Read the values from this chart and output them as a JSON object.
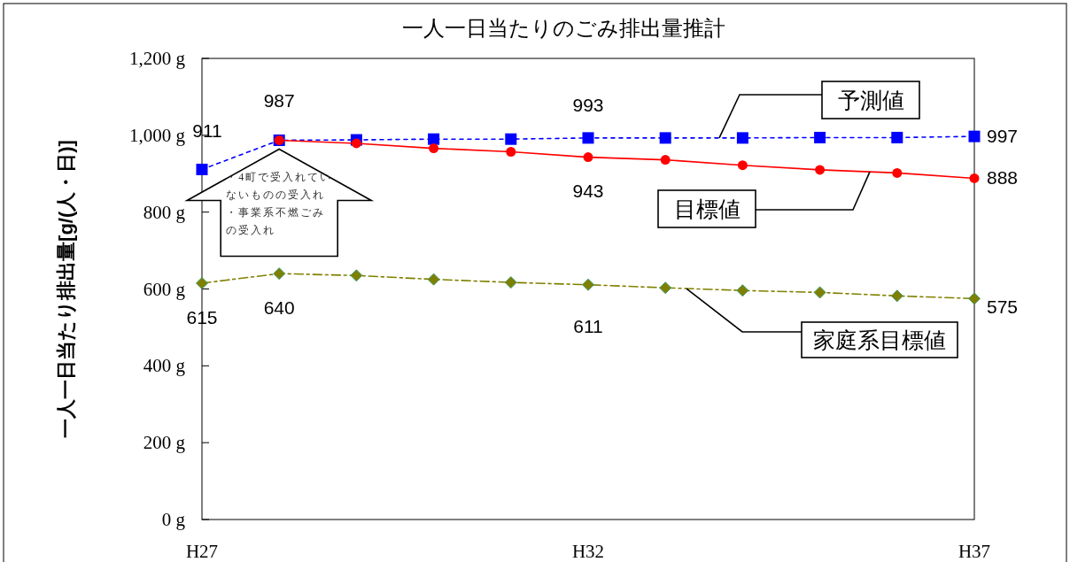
{
  "chart_data": {
    "type": "line",
    "title": "一人一日当たりのごみ排出量推計",
    "ylabel": "一人一日当たり排出量[g/(人・日)]",
    "categories": [
      "H27",
      null,
      null,
      null,
      null,
      "H32",
      null,
      null,
      null,
      null,
      "H37"
    ],
    "series": [
      {
        "name": "予測値",
        "color": "#0000ff",
        "marker": "square",
        "line_style": "dotted",
        "values": [
          911,
          987,
          988,
          990,
          990,
          993,
          993,
          993,
          994,
          994,
          997
        ],
        "value_labels": [
          "911",
          "987",
          null,
          null,
          null,
          "993",
          null,
          null,
          null,
          null,
          "997"
        ]
      },
      {
        "name": "目標値",
        "color": "#ff0000",
        "marker": "circle",
        "line_style": "solid",
        "values": [
          null,
          987,
          979,
          966,
          957,
          943,
          936,
          922,
          910,
          902,
          888
        ],
        "value_labels": [
          null,
          null,
          null,
          null,
          null,
          "943",
          null,
          null,
          null,
          null,
          "888"
        ]
      },
      {
        "name": "家庭系目標値",
        "color": "#808000",
        "marker": "diamond",
        "line_style": "dashed",
        "values": [
          615,
          640,
          635,
          625,
          617,
          611,
          603,
          596,
          591,
          582,
          575
        ],
        "value_labels": [
          "615",
          "640",
          null,
          null,
          null,
          "611",
          null,
          null,
          null,
          null,
          "575"
        ]
      }
    ],
    "ylim": [
      0,
      1200
    ],
    "yticks": [
      {
        "value": 0,
        "label": "0 g"
      },
      {
        "value": 200,
        "label": "200 g"
      },
      {
        "value": 400,
        "label": "400 g"
      },
      {
        "value": 600,
        "label": "600 g"
      },
      {
        "value": 800,
        "label": "800 g"
      },
      {
        "value": 1000,
        "label": "1,000 g"
      },
      {
        "value": 1200,
        "label": "1,200 g"
      }
    ],
    "grid": false,
    "annotations": [
      "・4町で受入れていないものの受入れ",
      "・事業系不燃ごみの受入れ"
    ]
  }
}
